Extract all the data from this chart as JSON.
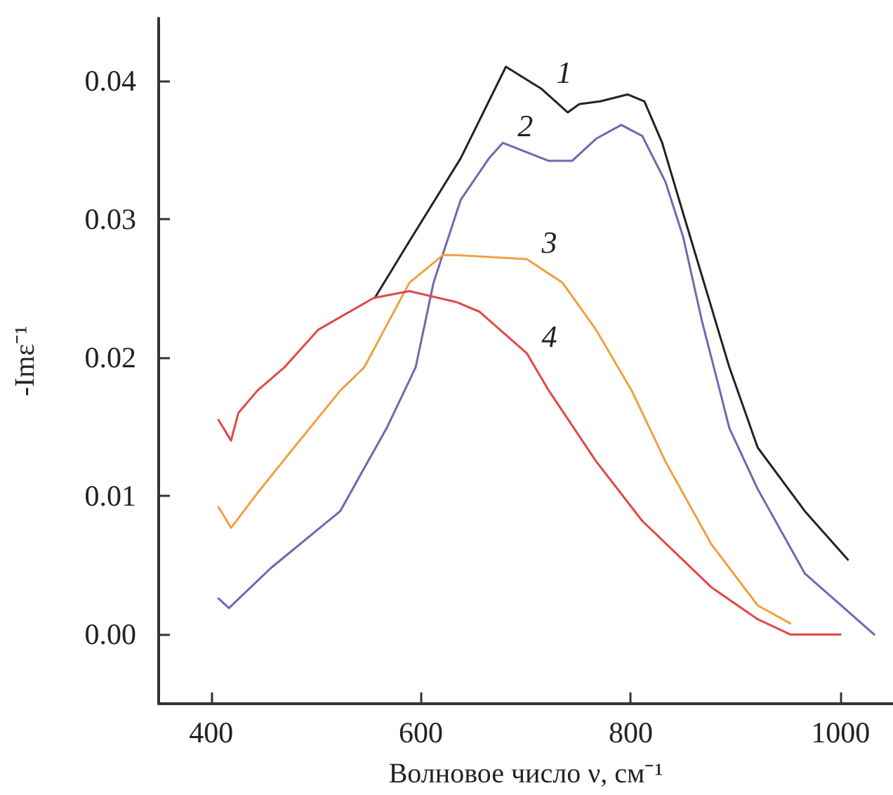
{
  "chart_data": {
    "type": "line",
    "xlabel": "Волновое число ν, см⁻¹",
    "ylabel": "-Imε⁻¹",
    "xlim": [
      350,
      1050
    ],
    "xticks": [
      400,
      600,
      800,
      1000
    ],
    "ylim": [
      -0.005,
      0.0445
    ],
    "yticks": [
      {
        "value": 0,
        "label": "0.00"
      },
      0.01,
      0.02,
      0.03,
      0.04
    ],
    "grid": false,
    "marker": "none",
    "line_style": "solid",
    "series": [
      {
        "name": "1",
        "color": "#222222",
        "x": [
          556,
          589,
          638,
          681,
          715,
          740,
          751,
          771,
          797,
          813,
          830,
          850,
          894,
          921,
          966,
          1007
        ],
        "values": [
          0.0243,
          0.0284,
          0.0344,
          0.041,
          0.0394,
          0.0377,
          0.0383,
          0.0385,
          0.039,
          0.0385,
          0.0355,
          0.0304,
          0.0193,
          0.0135,
          0.0089,
          0.0054
        ]
      },
      {
        "name": "2",
        "color": "#6a6ab0",
        "x": [
          407,
          417,
          457,
          523,
          568,
          595,
          612,
          638,
          665,
          678,
          722,
          744,
          767,
          791,
          811,
          833,
          850,
          868,
          886,
          894,
          921,
          966,
          1032
        ],
        "values": [
          0.0026,
          0.0019,
          0.0048,
          0.0089,
          0.015,
          0.0193,
          0.0254,
          0.0314,
          0.0344,
          0.0355,
          0.0342,
          0.0342,
          0.0358,
          0.0368,
          0.036,
          0.0327,
          0.0287,
          0.0226,
          0.0173,
          0.0149,
          0.0105,
          0.0044,
          0.0
        ]
      },
      {
        "name": "3",
        "color": "#f0a040",
        "x": [
          407,
          419,
          444,
          479,
          523,
          546,
          589,
          621,
          634,
          701,
          735,
          767,
          801,
          833,
          877,
          921,
          952
        ],
        "values": [
          0.0092,
          0.0077,
          0.0102,
          0.0135,
          0.0176,
          0.0193,
          0.0254,
          0.0274,
          0.0274,
          0.0271,
          0.0254,
          0.022,
          0.0176,
          0.0125,
          0.0065,
          0.0021,
          0.0008
        ]
      },
      {
        "name": "4",
        "color": "#e04848",
        "x": [
          407,
          419,
          426,
          444,
          470,
          502,
          555,
          589,
          634,
          656,
          701,
          722,
          767,
          811,
          877,
          921,
          952,
          1000
        ],
        "values": [
          0.0155,
          0.014,
          0.016,
          0.0176,
          0.0193,
          0.022,
          0.0243,
          0.0248,
          0.024,
          0.0233,
          0.0203,
          0.0176,
          0.0125,
          0.0082,
          0.0034,
          0.0011,
          0.0,
          0.0
        ]
      }
    ]
  }
}
